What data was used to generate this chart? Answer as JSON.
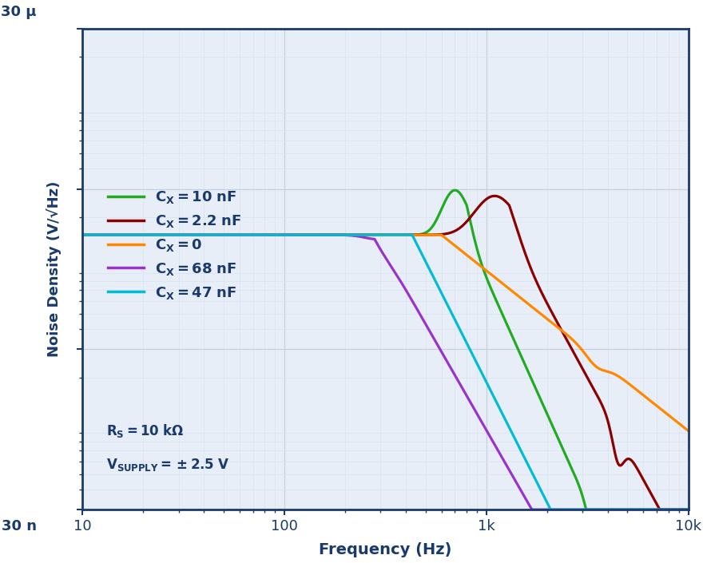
{
  "xlabel": "Frequency (Hz)",
  "ylabel": "Noise Density (V/√Hz)",
  "xlim": [
    10,
    10000
  ],
  "ylim": [
    3e-08,
    3e-05
  ],
  "background_color": "#ffffff",
  "plot_bg_color": "#e8eef8",
  "border_color": "#1a3a6b",
  "grid_major_color": "#c5d0e0",
  "grid_minor_color": "#d8e2ee",
  "label_color": "#1a3a6b",
  "V_flat": 1.55e-06,
  "curves": {
    "cx10nF": {
      "color": "#22aa22",
      "lw": 2.3
    },
    "cx2p2nF": {
      "color": "#8b0000",
      "lw": 2.3
    },
    "cx0": {
      "color": "#ff8800",
      "lw": 2.3
    },
    "cx68nF": {
      "color": "#9933cc",
      "lw": 2.3
    },
    "cx47nF": {
      "color": "#00bcd4",
      "lw": 2.3
    }
  }
}
